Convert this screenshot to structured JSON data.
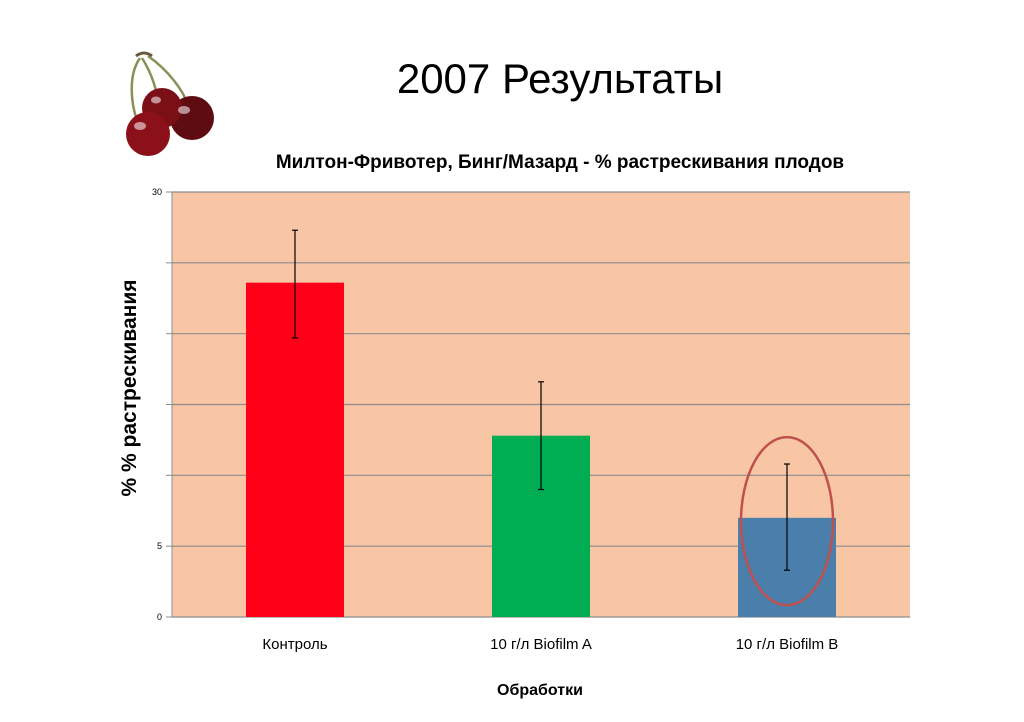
{
  "slide_title": "2007 Результаты",
  "chart_data": {
    "type": "bar",
    "title": "Милтон-Фривотер, Бинг/Мазард - % растрескивания плодов",
    "xlabel": "Обработки",
    "ylabel": "% % растрескивания",
    "categories": [
      "Контроль",
      "10  г/л Biofilm A",
      "10 г/л Biofilm B"
    ],
    "values": [
      23.6,
      12.8,
      7.0
    ],
    "error_low": [
      19.7,
      9.0,
      3.3
    ],
    "error_high": [
      27.3,
      16.6,
      10.8
    ],
    "bar_colors": [
      "#ff0019",
      "#00ad52",
      "#4a7fab"
    ],
    "ylim": [
      0,
      30
    ],
    "y_tick_labels": [
      {
        "value": 0,
        "label": "0"
      },
      {
        "value": 5,
        "label": "5"
      },
      {
        "value": 30,
        "label": "30"
      }
    ],
    "gridlines": [
      0,
      5,
      10,
      15,
      20,
      25,
      30
    ],
    "grid": true,
    "plot_background": "#f9c6a5",
    "highlight_category": "10 г/л Biofilm B",
    "highlight_color": "#c0504d"
  }
}
